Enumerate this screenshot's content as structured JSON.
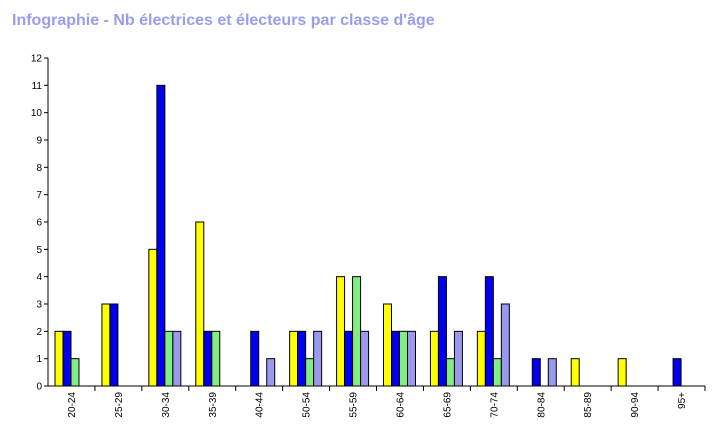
{
  "chart_data": {
    "type": "bar",
    "title": "Infographie - Nb électrices et électeurs par classe d'âge",
    "xlabel": "",
    "ylabel": "",
    "ylim": [
      0,
      12
    ],
    "yticks": [
      0,
      1,
      2,
      3,
      4,
      5,
      6,
      7,
      8,
      9,
      10,
      11,
      12
    ],
    "grid": false,
    "legend": "none",
    "categories": [
      "20-24",
      "25-29",
      "30-34",
      "35-39",
      "40-44",
      "50-54",
      "55-59",
      "60-64",
      "65-69",
      "70-74",
      "80-84",
      "85-89",
      "90-94",
      "95+"
    ],
    "series": [
      {
        "color": "#ffff00",
        "values": [
          2,
          3,
          5,
          6,
          0,
          2,
          4,
          3,
          2,
          2,
          0,
          1,
          1,
          0
        ]
      },
      {
        "color": "#0000ee",
        "values": [
          2,
          3,
          11,
          2,
          2,
          2,
          2,
          2,
          4,
          4,
          1,
          0,
          0,
          1
        ]
      },
      {
        "color": "#80ee80",
        "values": [
          1,
          0,
          2,
          2,
          0,
          1,
          4,
          2,
          1,
          1,
          0,
          0,
          0,
          0
        ]
      },
      {
        "color": "#9999ee",
        "values": [
          0,
          0,
          2,
          0,
          1,
          2,
          2,
          2,
          2,
          3,
          1,
          0,
          0,
          0
        ]
      }
    ]
  }
}
